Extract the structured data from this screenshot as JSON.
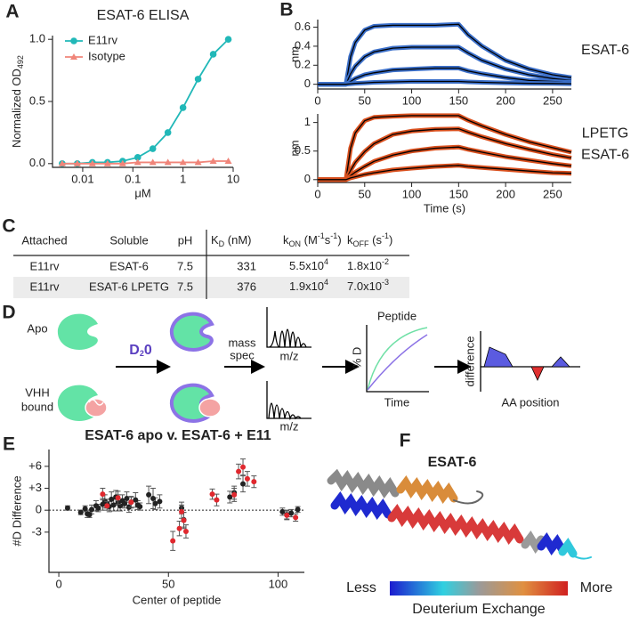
{
  "panel_labels": [
    "A",
    "B",
    "C",
    "D",
    "E",
    "F"
  ],
  "chart_data": [
    {
      "type": "line",
      "title": "ESAT-6 ELISA",
      "y_label": [
        {
          "t": "Normalized OD"
        },
        {
          "sub": "492"
        }
      ],
      "x_label": "μM",
      "log_x": true,
      "xlim": [
        0.0025,
        10
      ],
      "xticks": [
        0.01,
        0.1,
        1,
        10
      ],
      "ylim": [
        -0.03,
        1.03
      ],
      "yticks": [
        {
          "value": 0,
          "label": "0.0"
        },
        {
          "value": 0.5,
          "label": "0.5"
        },
        {
          "value": 1,
          "label": "1.0"
        }
      ],
      "legend": "top-left",
      "x": [
        0.0039,
        0.0078,
        0.0156,
        0.03125,
        0.0625,
        0.125,
        0.25,
        0.5,
        1,
        2,
        4,
        8
      ],
      "series": [
        {
          "name": "E11rv",
          "color": "#21b8b8",
          "marker": "circle",
          "values": [
            0,
            0,
            0.01,
            0.01,
            0.02,
            0.05,
            0.12,
            0.25,
            0.45,
            0.68,
            0.88,
            1.0
          ]
        },
        {
          "name": "Isotype",
          "color": "#f0857a",
          "marker": "triangle",
          "values": [
            0,
            0,
            0,
            0,
            0,
            0.01,
            0.01,
            0.01,
            0.01,
            0.01,
            0.02,
            0.02
          ]
        }
      ]
    },
    {
      "type": "sensorgram",
      "y_label": "nm",
      "annotation": [
        "ESAT-6"
      ],
      "xlim": [
        0,
        270
      ],
      "xticks": [
        0,
        50,
        100,
        150,
        200,
        250
      ],
      "ylim": [
        -0.05,
        0.68
      ],
      "yticks": [
        0,
        0.2,
        0.4,
        0.6
      ],
      "fit_color": "#000000",
      "x": [
        0,
        30,
        35,
        40,
        50,
        60,
        80,
        100,
        125,
        150,
        160,
        175,
        200,
        225,
        250,
        270
      ],
      "series": [
        {
          "color": "#3b6fc9",
          "values": [
            0,
            0,
            0.29,
            0.44,
            0.57,
            0.61,
            0.62,
            0.62,
            0.62,
            0.63,
            0.52,
            0.4,
            0.25,
            0.16,
            0.1,
            0.07
          ]
        },
        {
          "color": "#3b6fc9",
          "values": [
            0,
            0,
            0.11,
            0.19,
            0.29,
            0.34,
            0.38,
            0.39,
            0.39,
            0.39,
            0.33,
            0.25,
            0.16,
            0.1,
            0.06,
            0.04
          ]
        },
        {
          "color": "#3b6fc9",
          "values": [
            0,
            0,
            0.03,
            0.06,
            0.1,
            0.12,
            0.15,
            0.16,
            0.17,
            0.17,
            0.14,
            0.11,
            0.07,
            0.04,
            0.03,
            0.02
          ]
        },
        {
          "color": "#3b6fc9",
          "values": [
            0,
            0,
            0.005,
            0.01,
            0.015,
            0.02,
            0.025,
            0.03,
            0.03,
            0.03,
            0.025,
            0.02,
            0.015,
            0.01,
            0.008,
            0.005
          ]
        }
      ]
    },
    {
      "type": "sensorgram",
      "y_label": "nm",
      "x_label": "Time (s)",
      "annotation": [
        "LPETG",
        "ESAT-6"
      ],
      "xlim": [
        0,
        270
      ],
      "xticks": [
        0,
        50,
        100,
        150,
        200,
        250
      ],
      "ylim": [
        -0.05,
        1.15
      ],
      "yticks": [
        0,
        0.5,
        1
      ],
      "fit_color": "#000000",
      "x": [
        0,
        30,
        35,
        40,
        50,
        60,
        80,
        100,
        125,
        150,
        160,
        175,
        200,
        225,
        250,
        270
      ],
      "series": [
        {
          "color": "#d9501e",
          "values": [
            0,
            0,
            0.55,
            0.82,
            1.03,
            1.09,
            1.11,
            1.12,
            1.12,
            1.12,
            1.04,
            0.94,
            0.79,
            0.66,
            0.56,
            0.48
          ]
        },
        {
          "color": "#d9501e",
          "values": [
            0,
            0,
            0.16,
            0.3,
            0.49,
            0.63,
            0.79,
            0.85,
            0.88,
            0.89,
            0.83,
            0.75,
            0.63,
            0.53,
            0.44,
            0.38
          ]
        },
        {
          "color": "#d9501e",
          "values": [
            0,
            0,
            0.07,
            0.13,
            0.23,
            0.32,
            0.43,
            0.5,
            0.55,
            0.57,
            0.53,
            0.48,
            0.4,
            0.34,
            0.28,
            0.24
          ]
        },
        {
          "color": "#d9501e",
          "values": [
            0,
            0,
            0.03,
            0.05,
            0.09,
            0.12,
            0.17,
            0.2,
            0.23,
            0.25,
            0.23,
            0.21,
            0.18,
            0.15,
            0.12,
            0.11
          ]
        }
      ]
    },
    {
      "type": "scatter",
      "title": "ESAT-6 apo v. ESAT-6 + E11",
      "x_label": "Center of peptide",
      "y_label": "#D Difference",
      "xlim": [
        -4.5,
        112
      ],
      "xticks": [
        0,
        50,
        100
      ],
      "ylim": [
        -8.5,
        8.3
      ],
      "yticks": [
        {
          "value": 6,
          "label": "+6"
        },
        {
          "value": 3,
          "label": "+3"
        },
        0,
        -3
      ],
      "hline": 0,
      "series": [
        {
          "color": "#222222",
          "x": [
            4,
            10,
            12,
            13,
            14,
            15,
            17,
            18,
            20,
            21,
            22,
            23,
            24,
            25,
            26,
            27,
            28,
            29,
            30,
            31,
            32,
            33,
            35,
            36,
            37,
            41,
            43,
            44,
            46,
            56,
            57,
            78,
            80,
            84,
            102,
            104,
            106,
            109
          ],
          "values": [
            0.3,
            -0.3,
            0.2,
            -0.5,
            -0.6,
            0.1,
            0.6,
            0.3,
            0.8,
            1.2,
            0.9,
            0.5,
            1.5,
            0.7,
            1.8,
            1.0,
            0.6,
            1.3,
            0.9,
            1.6,
            0.4,
            1.1,
            1.4,
            0.7,
            0.5,
            2.1,
            1.6,
            0.9,
            1.2,
            0.3,
            -1.3,
            1.8,
            2.4,
            3.6,
            -0.2,
            -0.6,
            -0.4,
            0.1
          ],
          "errors": [
            0.3,
            0.3,
            0.4,
            0.5,
            0.4,
            0.6,
            0.7,
            0.5,
            0.8,
            0.9,
            0.6,
            0.7,
            1.0,
            0.8,
            0.9,
            1.1,
            0.7,
            0.8,
            0.6,
            0.9,
            0.7,
            0.8,
            1.0,
            0.6,
            0.5,
            1.2,
            1.4,
            0.8,
            0.9,
            0.8,
            1.0,
            0.8,
            0.9,
            1.1,
            0.5,
            0.6,
            0.5,
            0.4
          ]
        },
        {
          "color": "#e0282e",
          "x": [
            20,
            22,
            27,
            33,
            52,
            55,
            56,
            57,
            58,
            70,
            72,
            80,
            82,
            84,
            86,
            89,
            104,
            108
          ],
          "values": [
            2.2,
            0.6,
            1.7,
            1.1,
            -4.2,
            -2.5,
            -0.2,
            -1.4,
            -2.9,
            2.2,
            1.4,
            2.1,
            5.3,
            5.9,
            4.3,
            3.9,
            -0.7,
            -1.0
          ],
          "errors": [
            0.8,
            0.6,
            0.9,
            0.7,
            1.3,
            1.0,
            0.9,
            1.1,
            0.9,
            0.7,
            0.8,
            0.9,
            1.0,
            1.1,
            1.0,
            0.8,
            0.6,
            0.5
          ]
        }
      ]
    }
  ],
  "table": {
    "headers": [
      "Attached",
      "Soluble",
      "pH",
      [
        {
          "t": "K"
        },
        {
          "sub": "D"
        },
        {
          "t": " (nM)"
        }
      ],
      [
        {
          "t": "k"
        },
        {
          "sub": "ON"
        },
        {
          "t": " (M"
        },
        {
          "sup": "-1"
        },
        {
          "t": "s"
        },
        {
          "sup": "-1"
        },
        {
          "t": ")"
        }
      ],
      [
        {
          "t": "k"
        },
        {
          "sub": "OFF"
        },
        {
          "t": " (s"
        },
        {
          "sup": "-1"
        },
        {
          "t": ")"
        }
      ]
    ],
    "rows": [
      [
        "E11rv",
        "ESAT-6",
        "7.5",
        "331",
        [
          {
            "t": "5.5x10"
          },
          {
            "sup": "4"
          }
        ],
        [
          {
            "t": "1.8x10"
          },
          {
            "sup": "-2"
          }
        ]
      ],
      [
        "E11rv",
        "ESAT-6 LPETG",
        "7.5",
        "376",
        [
          {
            "t": "1.9x10"
          },
          {
            "sup": "4"
          }
        ],
        [
          {
            "t": "7.0x10"
          },
          {
            "sup": "-3"
          }
        ]
      ]
    ]
  },
  "diagram": {
    "apo": "Apo",
    "bound": [
      "VHH",
      "bound"
    ],
    "reagent": [
      {
        "t": "D"
      },
      {
        "sub": "2"
      },
      {
        "t": "0"
      }
    ],
    "method": [
      "mass",
      "spec"
    ],
    "mz": [
      "m/z",
      "m/z"
    ],
    "plot1": {
      "title": "Peptide",
      "y": "% D",
      "x": "Time"
    },
    "plot2": {
      "y": "difference",
      "x": "AA position"
    }
  },
  "structure": {
    "title": "ESAT-6",
    "colorbar": {
      "low": "Less",
      "high": "More",
      "label": "Deuterium Exchange"
    }
  }
}
